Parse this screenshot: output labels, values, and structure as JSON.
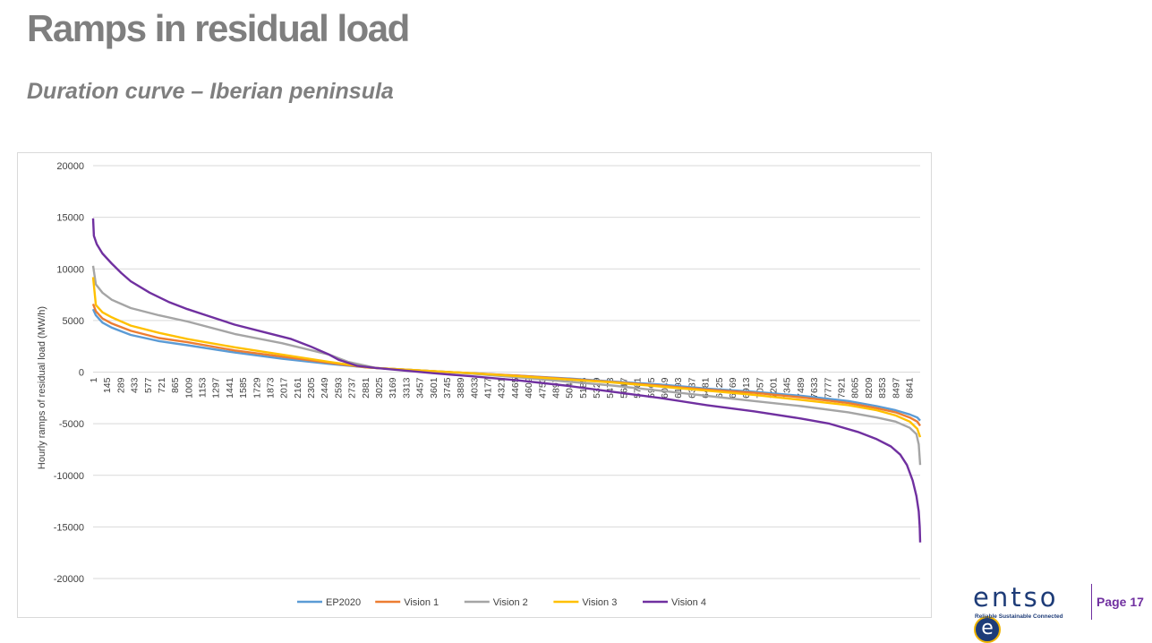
{
  "slide": {
    "title": "Ramps in residual load",
    "subtitle": "Duration curve – Iberian peninsula",
    "page_label": "Page 17"
  },
  "logo": {
    "text": "entso",
    "mark": "e",
    "tagline": "Reliable Sustainable Connected",
    "colors": {
      "primary": "#1e3c78",
      "accent": "#f0b400",
      "page": "#7030a0"
    }
  },
  "chart_data": {
    "type": "line",
    "title": "",
    "ylabel": "Hourly ramps of residual load (MW/h)",
    "xlabel": "",
    "ylim": [
      -20000,
      20000
    ],
    "yticks": [
      20000,
      15000,
      10000,
      5000,
      0,
      -5000,
      -10000,
      -15000,
      -20000
    ],
    "xlim": [
      1,
      8760
    ],
    "xticks": [
      1,
      145,
      289,
      433,
      577,
      721,
      865,
      1009,
      1153,
      1297,
      1441,
      1585,
      1729,
      1873,
      2017,
      2161,
      2305,
      2449,
      2593,
      2737,
      2881,
      3025,
      3169,
      3313,
      3457,
      3601,
      3745,
      3889,
      4033,
      4177,
      4321,
      4465,
      4609,
      4753,
      4897,
      5041,
      5185,
      5329,
      5473,
      5617,
      5761,
      5905,
      6049,
      6193,
      6337,
      6481,
      6625,
      6769,
      6913,
      7057,
      7201,
      7345,
      7489,
      7633,
      7777,
      7921,
      8065,
      8209,
      8353,
      8497,
      8641
    ],
    "grid": true,
    "legend_position": "bottom",
    "series": [
      {
        "name": "EP2020",
        "color": "#5b9bd5",
        "x": [
          1,
          30,
          100,
          200,
          400,
          700,
          1000,
          1500,
          2000,
          2500,
          2900,
          3000,
          3500,
          4000,
          4500,
          5000,
          5500,
          6000,
          6500,
          7000,
          7500,
          8000,
          8300,
          8500,
          8650,
          8730,
          8760
        ],
        "y": [
          6100,
          5500,
          4800,
          4300,
          3600,
          3000,
          2600,
          1900,
          1300,
          800,
          450,
          400,
          150,
          -100,
          -350,
          -600,
          -900,
          -1200,
          -1600,
          -1900,
          -2300,
          -2800,
          -3300,
          -3700,
          -4100,
          -4400,
          -4700
        ]
      },
      {
        "name": "Vision 1",
        "color": "#ed7d31",
        "x": [
          1,
          30,
          100,
          200,
          400,
          700,
          1000,
          1500,
          2000,
          2500,
          2900,
          3000,
          3500,
          4000,
          4500,
          5000,
          5500,
          6000,
          6500,
          7000,
          7500,
          8000,
          8300,
          8500,
          8650,
          8730,
          8760
        ],
        "y": [
          6600,
          5900,
          5200,
          4700,
          4000,
          3300,
          2900,
          2100,
          1500,
          900,
          450,
          400,
          150,
          -100,
          -350,
          -650,
          -950,
          -1300,
          -1700,
          -2000,
          -2450,
          -3000,
          -3500,
          -3900,
          -4400,
          -4800,
          -5200
        ]
      },
      {
        "name": "Vision 2",
        "color": "#a5a5a5",
        "x": [
          1,
          30,
          100,
          200,
          400,
          700,
          1000,
          1500,
          2000,
          2500,
          2700,
          3000,
          3500,
          4000,
          4500,
          5000,
          5500,
          6000,
          6500,
          7000,
          7500,
          8000,
          8300,
          8500,
          8650,
          8720,
          8745,
          8760
        ],
        "y": [
          10300,
          8500,
          7700,
          7000,
          6200,
          5500,
          4900,
          3700,
          2800,
          1700,
          1000,
          400,
          150,
          -150,
          -500,
          -900,
          -1300,
          -1800,
          -2300,
          -2800,
          -3300,
          -3900,
          -4400,
          -4800,
          -5400,
          -6000,
          -7000,
          -9000
        ]
      },
      {
        "name": "Vision 3",
        "color": "#ffc000",
        "x": [
          1,
          30,
          100,
          200,
          400,
          700,
          1000,
          1500,
          2000,
          2500,
          2900,
          3000,
          3500,
          4000,
          4500,
          5000,
          5500,
          6000,
          6500,
          7000,
          7500,
          8000,
          8300,
          8500,
          8650,
          8730,
          8760
        ],
        "y": [
          9200,
          6500,
          5800,
          5300,
          4500,
          3800,
          3200,
          2400,
          1700,
          1000,
          480,
          400,
          150,
          -100,
          -400,
          -700,
          -1000,
          -1400,
          -1800,
          -2200,
          -2700,
          -3200,
          -3700,
          -4200,
          -4800,
          -5500,
          -6300
        ]
      },
      {
        "name": "Vision 4",
        "color": "#7030a0",
        "x": [
          1,
          10,
          40,
          100,
          200,
          300,
          400,
          600,
          800,
          1000,
          1200,
          1500,
          1800,
          2100,
          2300,
          2500,
          2600,
          2700,
          2800,
          3000,
          3300,
          3600,
          4000,
          4500,
          5000,
          5500,
          6000,
          6500,
          7000,
          7500,
          7800,
          8100,
          8300,
          8450,
          8550,
          8620,
          8680,
          8720,
          8745,
          8755,
          8760
        ],
        "y": [
          14900,
          13200,
          12400,
          11500,
          10500,
          9600,
          8800,
          7700,
          6800,
          6100,
          5500,
          4600,
          3900,
          3200,
          2500,
          1700,
          1200,
          900,
          600,
          400,
          150,
          -100,
          -400,
          -800,
          -1300,
          -1900,
          -2500,
          -3200,
          -3800,
          -4500,
          -5000,
          -5800,
          -6500,
          -7200,
          -8000,
          -9000,
          -10500,
          -12000,
          -13500,
          -15000,
          -16500
        ]
      }
    ]
  }
}
